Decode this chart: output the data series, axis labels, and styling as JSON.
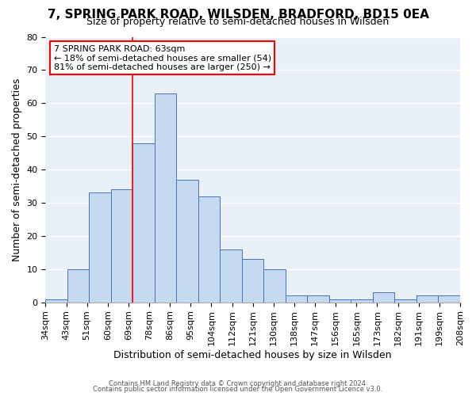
{
  "title": "7, SPRING PARK ROAD, WILSDEN, BRADFORD, BD15 0EA",
  "subtitle": "Size of property relative to semi-detached houses in Wilsden",
  "xlabel": "Distribution of semi-detached houses by size in Wilsden",
  "ylabel": "Number of semi-detached properties",
  "bar_values": [
    1,
    10,
    33,
    34,
    48,
    63,
    37,
    32,
    16,
    13,
    10,
    2,
    2,
    1,
    1,
    3,
    1,
    2,
    2
  ],
  "tick_labels": [
    "34sqm",
    "43sqm",
    "51sqm",
    "60sqm",
    "69sqm",
    "78sqm",
    "86sqm",
    "95sqm",
    "104sqm",
    "112sqm",
    "121sqm",
    "130sqm",
    "138sqm",
    "147sqm",
    "156sqm",
    "165sqm",
    "173sqm",
    "182sqm",
    "191sqm",
    "199sqm",
    "208sqm"
  ],
  "ylim": [
    0,
    80
  ],
  "yticks": [
    0,
    10,
    20,
    30,
    40,
    50,
    60,
    70,
    80
  ],
  "bar_color": "#c5d9f0",
  "bar_edge_color": "#4472c4",
  "background_color": "#eaf0f8",
  "grid_color": "#ffffff",
  "red_line_x": 3.5,
  "annotation_box_text": "7 SPRING PARK ROAD: 63sqm\n← 18% of semi-detached houses are smaller (54)\n81% of semi-detached houses are larger (250) →",
  "footer_line1": "Contains HM Land Registry data © Crown copyright and database right 2024.",
  "footer_line2": "Contains public sector information licensed under the Open Government Licence v3.0.",
  "title_fontsize": 11,
  "subtitle_fontsize": 9,
  "xlabel_fontsize": 9,
  "ylabel_fontsize": 9,
  "tick_fontsize": 8
}
